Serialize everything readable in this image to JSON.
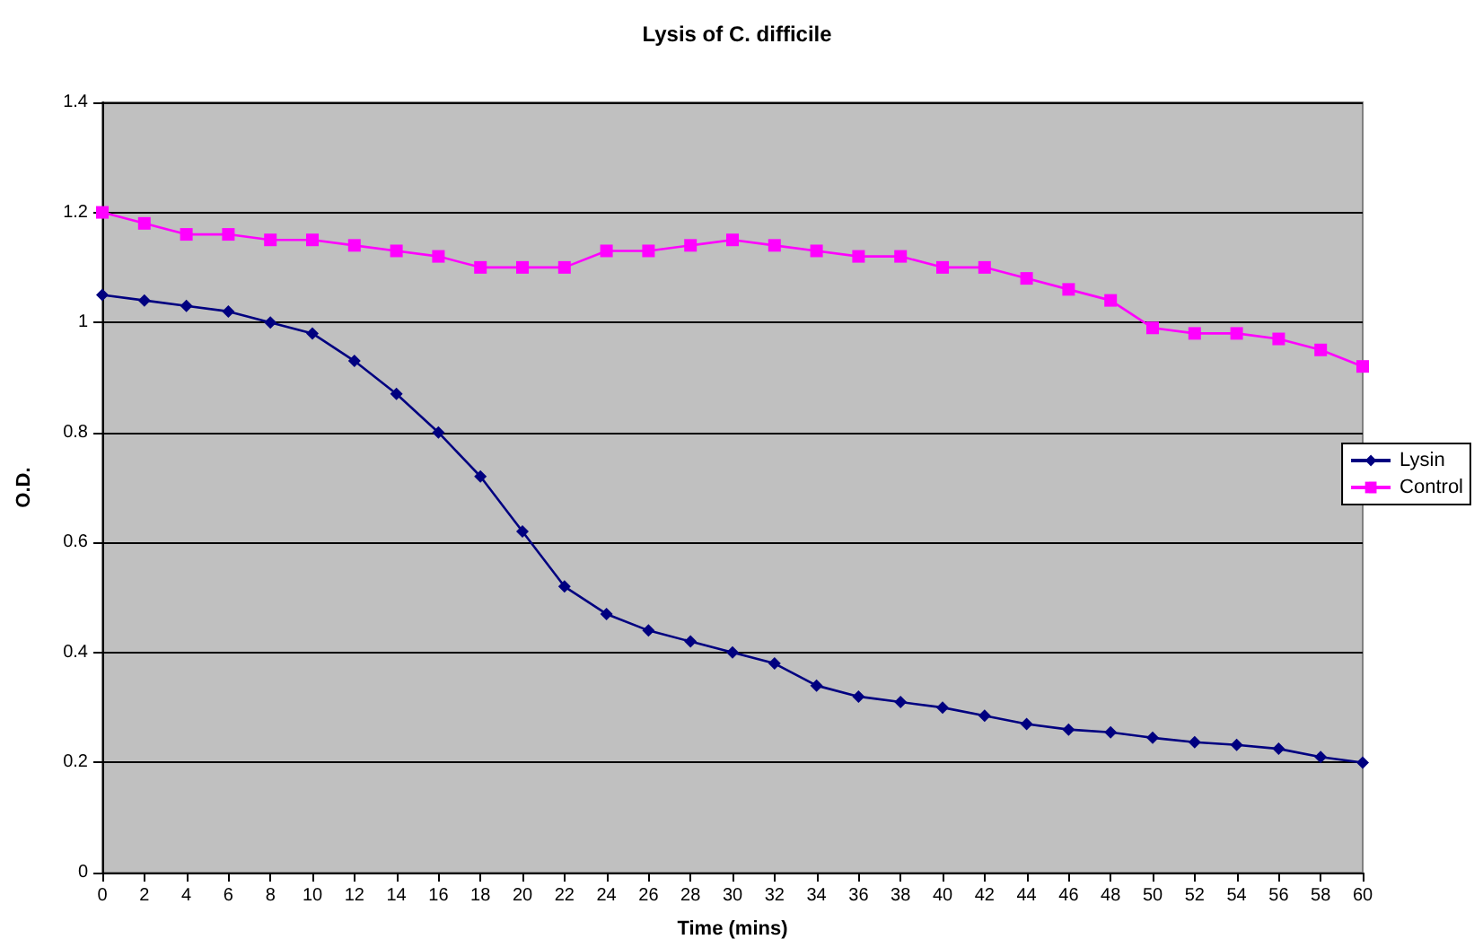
{
  "chart_data": {
    "type": "line",
    "title": "Lysis of C. difficile",
    "xlabel": "Time (mins)",
    "ylabel": "O.D.",
    "x": [
      0,
      2,
      4,
      6,
      8,
      10,
      12,
      14,
      16,
      18,
      20,
      22,
      24,
      26,
      28,
      30,
      32,
      34,
      36,
      38,
      40,
      42,
      44,
      46,
      48,
      50,
      52,
      54,
      56,
      58,
      60
    ],
    "xlim": [
      0,
      60
    ],
    "xticks": [
      0,
      2,
      4,
      6,
      8,
      10,
      12,
      14,
      16,
      18,
      20,
      22,
      24,
      26,
      28,
      30,
      32,
      34,
      36,
      38,
      40,
      42,
      44,
      46,
      48,
      50,
      52,
      54,
      56,
      58,
      60
    ],
    "ylim": [
      0,
      1.4
    ],
    "yticks": [
      0,
      0.2,
      0.4,
      0.6,
      0.8,
      1,
      1.2,
      1.4
    ],
    "grid": "y",
    "legend": "right",
    "series": [
      {
        "name": "Lysin",
        "color": "#000080",
        "marker": "diamond",
        "values": [
          1.05,
          1.04,
          1.03,
          1.02,
          1.0,
          0.98,
          0.93,
          0.87,
          0.8,
          0.72,
          0.62,
          0.52,
          0.47,
          0.44,
          0.42,
          0.4,
          0.38,
          0.34,
          0.32,
          0.31,
          0.3,
          0.285,
          0.27,
          0.26,
          0.255,
          0.245,
          0.237,
          0.232,
          0.225,
          0.21,
          0.2
        ]
      },
      {
        "name": "Control",
        "color": "#ff00ff",
        "marker": "square",
        "values": [
          1.2,
          1.18,
          1.16,
          1.16,
          1.15,
          1.15,
          1.14,
          1.13,
          1.12,
          1.1,
          1.1,
          1.1,
          1.13,
          1.13,
          1.14,
          1.15,
          1.14,
          1.13,
          1.12,
          1.12,
          1.1,
          1.1,
          1.08,
          1.06,
          1.04,
          0.99,
          0.98,
          0.98,
          0.97,
          0.95,
          0.92
        ]
      }
    ]
  }
}
